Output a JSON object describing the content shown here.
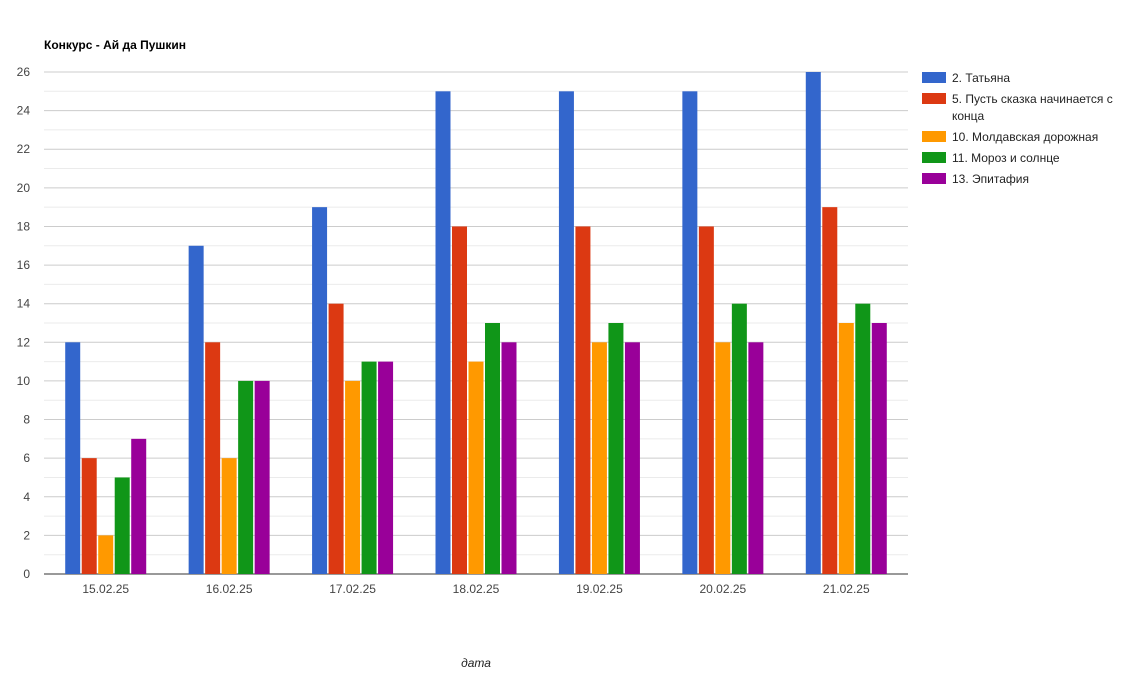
{
  "chart_data": {
    "type": "bar",
    "title": "Конкурс - Ай да Пушкин",
    "xlabel": "дата",
    "ylabel": "",
    "ylim": [
      0,
      26
    ],
    "yticks": [
      0,
      2,
      4,
      6,
      8,
      10,
      12,
      14,
      16,
      18,
      20,
      22,
      24,
      26
    ],
    "grid": true,
    "legend_position": "right",
    "categories": [
      "15.02.25",
      "16.02.25",
      "17.02.25",
      "18.02.25",
      "19.02.25",
      "20.02.25",
      "21.02.25"
    ],
    "series": [
      {
        "name": "2. Татьяна",
        "color": "#3366cc",
        "values": [
          12,
          17,
          19,
          25,
          25,
          25,
          26
        ]
      },
      {
        "name": "5. Пусть сказка начинается с конца",
        "color": "#dc3912",
        "values": [
          6,
          12,
          14,
          18,
          18,
          18,
          19
        ]
      },
      {
        "name": "10. Молдавская дорожная",
        "color": "#ff9900",
        "values": [
          2,
          6,
          10,
          11,
          12,
          12,
          13
        ]
      },
      {
        "name": "11. Мороз и солнце",
        "color": "#109618",
        "values": [
          5,
          10,
          11,
          13,
          13,
          14,
          14
        ]
      },
      {
        "name": "13. Эпитафия",
        "color": "#990099",
        "values": [
          7,
          10,
          11,
          12,
          12,
          12,
          13
        ]
      }
    ]
  }
}
